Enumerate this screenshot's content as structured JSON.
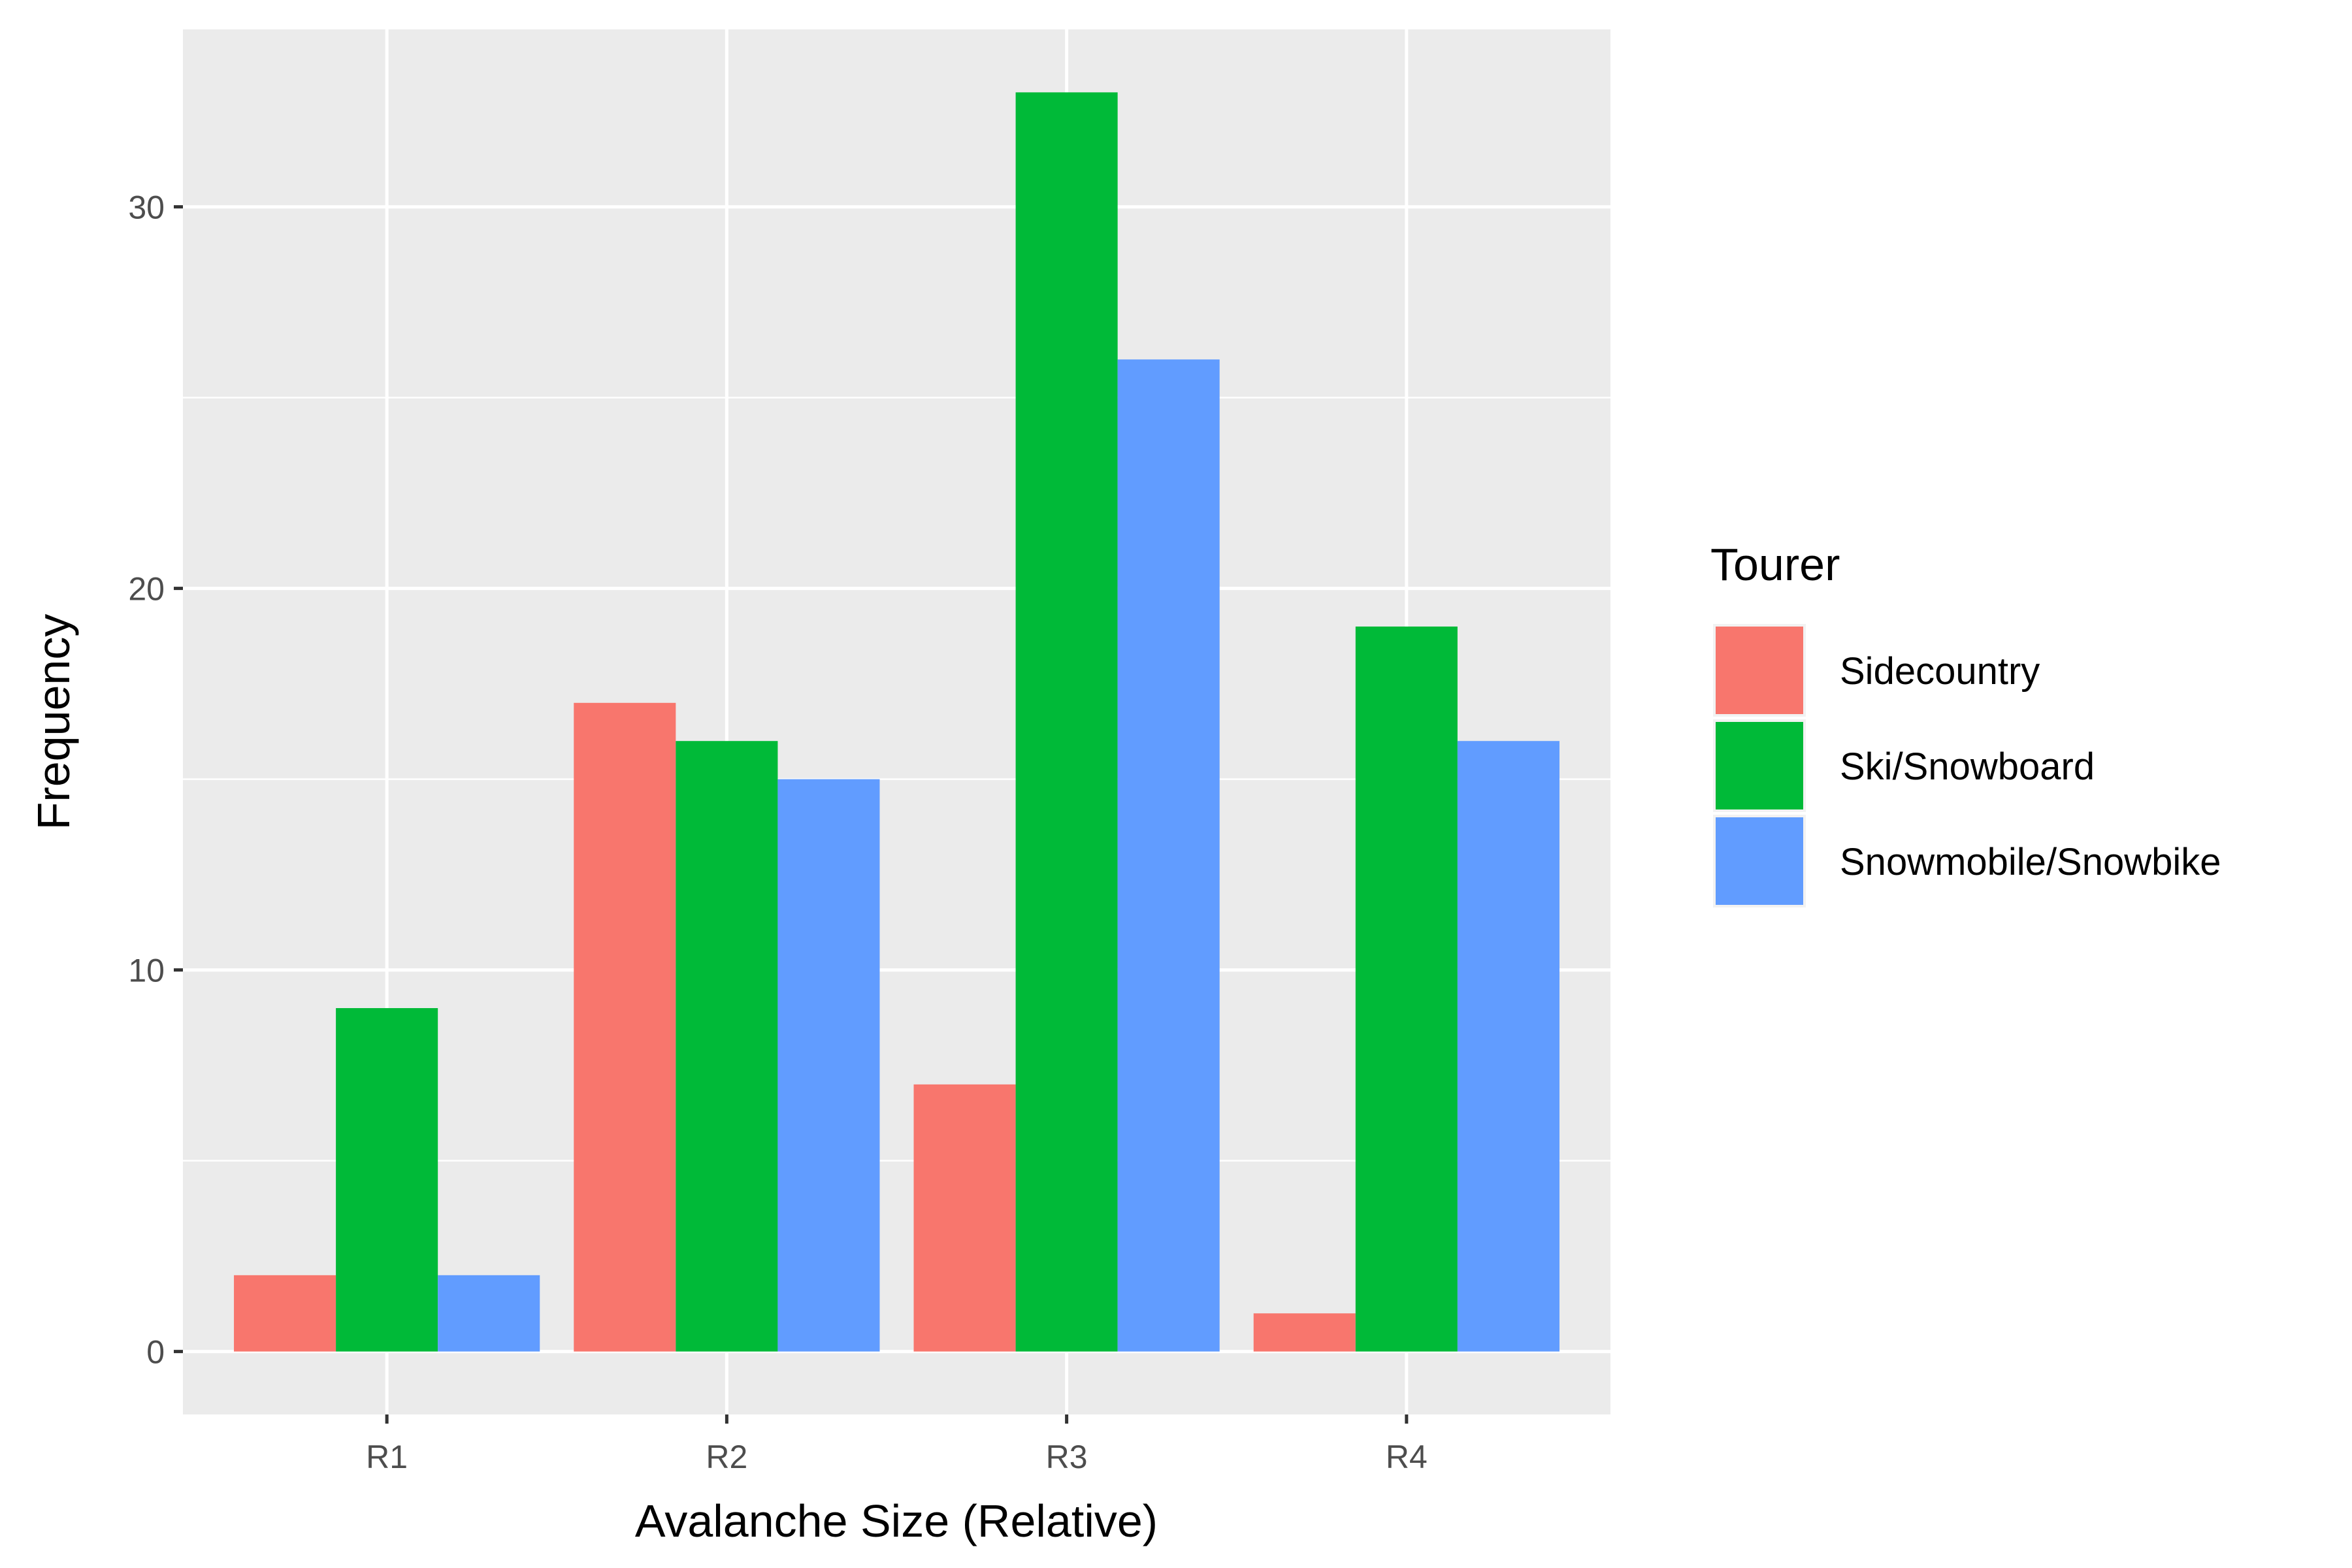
{
  "chart_data": {
    "type": "bar",
    "categories": [
      "R1",
      "R2",
      "R3",
      "R4"
    ],
    "series": [
      {
        "name": "Sidecountry",
        "values": [
          2,
          17,
          7,
          1
        ],
        "color": "#F8766D"
      },
      {
        "name": "Ski/Snowboard",
        "values": [
          9,
          16,
          33,
          19
        ],
        "color": "#00BA38"
      },
      {
        "name": "Snowmobile/Snowbike",
        "values": [
          2,
          15,
          26,
          16
        ],
        "color": "#619CFF"
      }
    ],
    "xlabel": "Avalanche Size (Relative)",
    "ylabel": "Frequency",
    "ylim": [
      -1.65,
      34.65
    ],
    "yticks": [
      0,
      10,
      20,
      30
    ],
    "yminor": [
      5,
      15,
      25
    ],
    "legend": {
      "title": "Tourer",
      "position": "right"
    },
    "grid": true,
    "panel_background": "#EBEBEB",
    "grid_color": "#FFFFFF"
  }
}
